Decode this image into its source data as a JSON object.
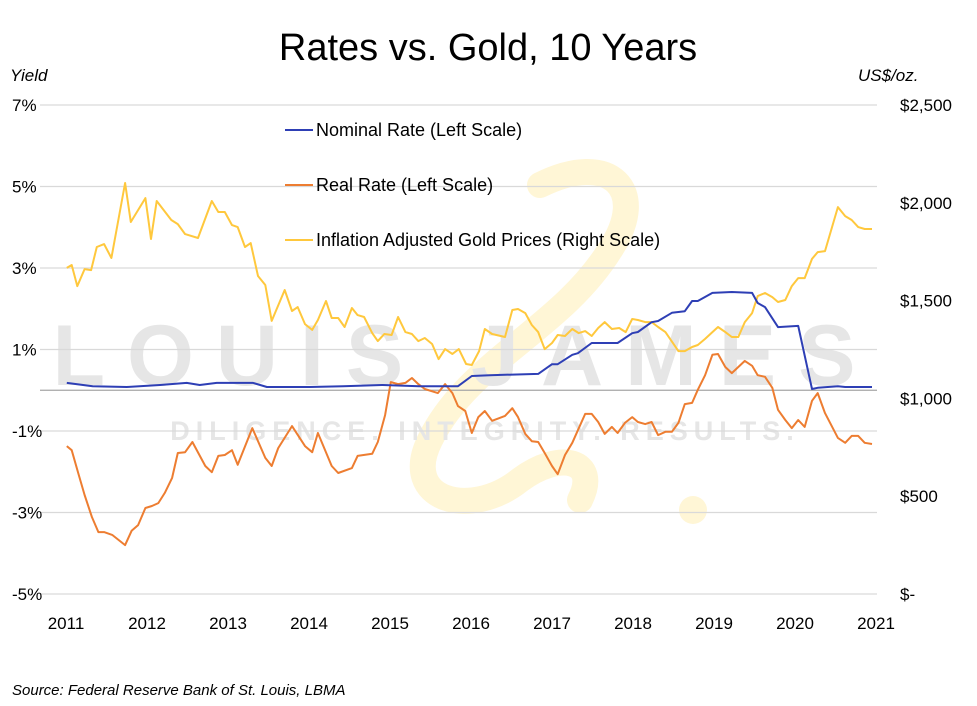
{
  "chart_data": {
    "type": "line",
    "title": "Rates vs. Gold, 10 Years",
    "ylabel_left": "Yield",
    "ylabel_right": "US$/oz.",
    "source": "Source: Federal Reserve Bank of St. Louis, LBMA",
    "watermark": {
      "name": "LOUIS JAMES",
      "tagline": "DILIGENCE. INTEGRITY. RESULTS."
    },
    "x_ticks": [
      "2011",
      "2012",
      "2013",
      "2014",
      "2015",
      "2016",
      "2017",
      "2018",
      "2019",
      "2020",
      "2021"
    ],
    "xlim": [
      2011,
      2021
    ],
    "ylim_left": [
      -5,
      7
    ],
    "ylim_right": [
      0,
      2500
    ],
    "left_ticks": [
      "7%",
      "5%",
      "3%",
      "1%",
      "-1%",
      "-3%",
      "-5%"
    ],
    "left_tick_values": [
      7,
      5,
      3,
      1,
      -1,
      -3,
      -5
    ],
    "right_ticks": [
      "$2,500",
      "$2,000",
      "$1,500",
      "$1,000",
      "$500",
      "$-"
    ],
    "right_tick_values": [
      2500,
      2000,
      1500,
      1000,
      500,
      0
    ],
    "grid": true,
    "legend_placement": "top-center",
    "series": [
      {
        "name": "Nominal Rate (Left Scale)",
        "axis": "left",
        "color": "#2E3FB5",
        "x": [
          2011.01,
          2011.33,
          2011.75,
          2012.16,
          2012.49,
          2012.65,
          2012.86,
          2013.31,
          2013.48,
          2014.01,
          2014.42,
          2014.91,
          2015.36,
          2015.84,
          2016.01,
          2016.23,
          2016.83,
          2017.0,
          2017.07,
          2017.25,
          2017.32,
          2017.49,
          2017.65,
          2017.81,
          2017.99,
          2018.06,
          2018.23,
          2018.31,
          2018.48,
          2018.64,
          2018.73,
          2018.8,
          2018.98,
          2019.22,
          2019.47,
          2019.54,
          2019.63,
          2019.79,
          2020.04,
          2020.21,
          2020.28,
          2020.53,
          2020.62,
          2020.95
        ],
        "y": [
          0.18,
          0.1,
          0.08,
          0.13,
          0.18,
          0.13,
          0.18,
          0.18,
          0.08,
          0.08,
          0.1,
          0.13,
          0.1,
          0.1,
          0.35,
          0.37,
          0.4,
          0.64,
          0.64,
          0.87,
          0.91,
          1.16,
          1.16,
          1.16,
          1.4,
          1.43,
          1.67,
          1.7,
          1.9,
          1.94,
          2.19,
          2.19,
          2.39,
          2.41,
          2.39,
          2.14,
          2.04,
          1.55,
          1.58,
          0.03,
          0.06,
          0.1,
          0.08,
          0.08
        ]
      },
      {
        "name": "Real Rate (Left Scale)",
        "axis": "left",
        "color": "#ED7D31",
        "x": [
          2011.01,
          2011.07,
          2011.15,
          2011.23,
          2011.32,
          2011.4,
          2011.47,
          2011.57,
          2011.73,
          2011.81,
          2011.89,
          2011.98,
          2012.06,
          2012.14,
          2012.22,
          2012.31,
          2012.38,
          2012.47,
          2012.56,
          2012.72,
          2012.8,
          2012.88,
          2012.96,
          2013.05,
          2013.12,
          2013.3,
          2013.46,
          2013.54,
          2013.62,
          2013.79,
          2013.95,
          2014.04,
          2014.11,
          2014.28,
          2014.36,
          2014.53,
          2014.6,
          2014.78,
          2014.85,
          2014.94,
          2015.01,
          2015.1,
          2015.19,
          2015.27,
          2015.35,
          2015.43,
          2015.59,
          2015.68,
          2015.77,
          2015.84,
          2015.93,
          2016.01,
          2016.09,
          2016.17,
          2016.26,
          2016.42,
          2016.51,
          2016.58,
          2016.67,
          2016.75,
          2016.83,
          2016.91,
          2017.0,
          2017.07,
          2017.16,
          2017.25,
          2017.32,
          2017.41,
          2017.49,
          2017.57,
          2017.65,
          2017.74,
          2017.81,
          2017.9,
          2017.99,
          2018.06,
          2018.15,
          2018.23,
          2018.31,
          2018.4,
          2018.48,
          2018.56,
          2018.64,
          2018.73,
          2018.8,
          2018.89,
          2018.98,
          2019.05,
          2019.14,
          2019.22,
          2019.3,
          2019.38,
          2019.47,
          2019.54,
          2019.63,
          2019.72,
          2019.79,
          2019.88,
          2019.96,
          2020.04,
          2020.12,
          2020.21,
          2020.28,
          2020.37,
          2020.53,
          2020.62,
          2020.7,
          2020.78,
          2020.86,
          2020.95
        ],
        "y": [
          -1.37,
          -1.47,
          -2.03,
          -2.57,
          -3.11,
          -3.48,
          -3.48,
          -3.55,
          -3.8,
          -3.45,
          -3.31,
          -2.89,
          -2.84,
          -2.77,
          -2.52,
          -2.15,
          -1.54,
          -1.52,
          -1.27,
          -1.86,
          -2.01,
          -1.61,
          -1.59,
          -1.47,
          -1.83,
          -0.93,
          -1.66,
          -1.86,
          -1.42,
          -0.88,
          -1.37,
          -1.52,
          -1.05,
          -1.86,
          -2.03,
          -1.91,
          -1.61,
          -1.56,
          -1.27,
          -0.61,
          0.2,
          0.15,
          0.18,
          0.3,
          0.15,
          0.03,
          -0.07,
          0.15,
          -0.07,
          -0.39,
          -0.51,
          -1.05,
          -0.66,
          -0.51,
          -0.75,
          -0.63,
          -0.44,
          -0.66,
          -1.07,
          -1.25,
          -1.27,
          -1.54,
          -1.86,
          -2.06,
          -1.59,
          -1.29,
          -0.98,
          -0.58,
          -0.58,
          -0.78,
          -1.07,
          -0.9,
          -1.05,
          -0.8,
          -0.66,
          -0.78,
          -0.83,
          -0.78,
          -1.1,
          -1.02,
          -1.02,
          -0.8,
          -0.34,
          -0.31,
          0.01,
          0.37,
          0.87,
          0.89,
          0.57,
          0.42,
          0.57,
          0.72,
          0.6,
          0.37,
          0.33,
          0.06,
          -0.48,
          -0.73,
          -0.93,
          -0.73,
          -0.9,
          -0.26,
          -0.07,
          -0.56,
          -1.17,
          -1.29,
          -1.12,
          -1.12,
          -1.29,
          -1.32
        ]
      },
      {
        "name": "Inflation Adjusted Gold Prices (Right Scale)",
        "axis": "right",
        "color": "#FFC83D",
        "x": [
          2011.01,
          2011.07,
          2011.14,
          2011.23,
          2011.31,
          2011.38,
          2011.47,
          2011.56,
          2011.73,
          2011.8,
          2011.98,
          2012.05,
          2012.12,
          2012.3,
          2012.38,
          2012.47,
          2012.63,
          2012.8,
          2012.88,
          2012.96,
          2013.05,
          2013.12,
          2013.21,
          2013.28,
          2013.37,
          2013.46,
          2013.54,
          2013.7,
          2013.79,
          2013.86,
          2013.95,
          2014.04,
          2014.11,
          2014.21,
          2014.28,
          2014.36,
          2014.44,
          2014.53,
          2014.6,
          2014.68,
          2014.78,
          2014.85,
          2014.93,
          2015.02,
          2015.1,
          2015.19,
          2015.27,
          2015.35,
          2015.43,
          2015.52,
          2015.6,
          2015.68,
          2015.77,
          2015.85,
          2015.94,
          2016.01,
          2016.1,
          2016.17,
          2016.26,
          2016.42,
          2016.51,
          2016.58,
          2016.67,
          2016.75,
          2016.83,
          2016.91,
          2017.0,
          2017.07,
          2017.16,
          2017.25,
          2017.33,
          2017.41,
          2017.49,
          2017.57,
          2017.65,
          2017.74,
          2017.83,
          2017.91,
          2017.99,
          2018.06,
          2018.15,
          2018.23,
          2018.31,
          2018.4,
          2018.56,
          2018.64,
          2018.73,
          2018.8,
          2018.89,
          2018.98,
          2019.05,
          2019.14,
          2019.22,
          2019.3,
          2019.38,
          2019.47,
          2019.54,
          2019.63,
          2019.72,
          2019.79,
          2019.88,
          2019.96,
          2020.04,
          2020.12,
          2020.21,
          2020.28,
          2020.37,
          2020.53,
          2020.62,
          2020.7,
          2020.78,
          2020.86,
          2020.95
        ],
        "y": [
          1667,
          1682,
          1574,
          1661,
          1656,
          1774,
          1789,
          1718,
          2101,
          1902,
          2024,
          1815,
          2009,
          1912,
          1891,
          1840,
          1820,
          2009,
          1953,
          1953,
          1886,
          1876,
          1774,
          1794,
          1626,
          1580,
          1396,
          1554,
          1447,
          1467,
          1380,
          1350,
          1401,
          1498,
          1411,
          1411,
          1365,
          1462,
          1426,
          1416,
          1334,
          1293,
          1329,
          1324,
          1416,
          1339,
          1329,
          1293,
          1309,
          1278,
          1201,
          1252,
          1227,
          1252,
          1176,
          1171,
          1242,
          1355,
          1329,
          1314,
          1452,
          1457,
          1436,
          1375,
          1339,
          1252,
          1283,
          1324,
          1319,
          1355,
          1334,
          1344,
          1319,
          1360,
          1390,
          1355,
          1360,
          1339,
          1406,
          1401,
          1390,
          1390,
          1365,
          1339,
          1242,
          1242,
          1263,
          1273,
          1304,
          1339,
          1365,
          1339,
          1314,
          1314,
          1390,
          1436,
          1523,
          1539,
          1518,
          1493,
          1503,
          1574,
          1615,
          1615,
          1713,
          1748,
          1753,
          1978,
          1932,
          1912,
          1876,
          1866,
          1866
        ]
      }
    ]
  }
}
